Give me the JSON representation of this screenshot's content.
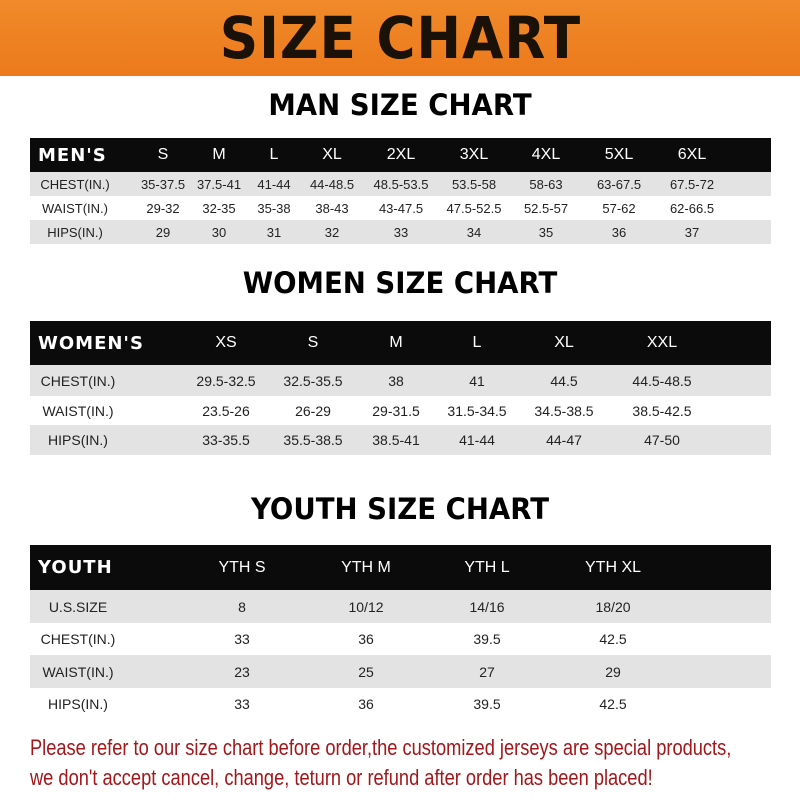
{
  "banner_title": "SIZE CHART",
  "colors": {
    "banner": "#ec7a1c",
    "header_row": "#0b0b0b",
    "stripe": "#e3e3e3",
    "note": "#a3171b"
  },
  "men": {
    "title": "MAN SIZE CHART",
    "headers": [
      "MEN'S",
      "S",
      "M",
      "L",
      "XL",
      "2XL",
      "3XL",
      "4XL",
      "5XL",
      "6XL"
    ],
    "rows": [
      [
        "CHEST(IN.)",
        "35-37.5",
        "37.5-41",
        "41-44",
        "44-48.5",
        "48.5-53.5",
        "53.5-58",
        "58-63",
        "63-67.5",
        "67.5-72"
      ],
      [
        "WAIST(IN.)",
        "29-32",
        "32-35",
        "35-38",
        "38-43",
        "43-47.5",
        "47.5-52.5",
        "52.5-57",
        "57-62",
        "62-66.5"
      ],
      [
        "HIPS(IN.)",
        "29",
        "30",
        "31",
        "32",
        "33",
        "34",
        "35",
        "36",
        "37"
      ]
    ]
  },
  "women": {
    "title": "WOMEN SIZE CHART",
    "headers": [
      "WOMEN'S",
      "XS",
      "S",
      "M",
      "L",
      "XL",
      "XXL"
    ],
    "rows": [
      [
        "CHEST(IN.)",
        "29.5-32.5",
        "32.5-35.5",
        "38",
        "41",
        "44.5",
        "44.5-48.5"
      ],
      [
        "WAIST(IN.)",
        "23.5-26",
        "26-29",
        "29-31.5",
        "31.5-34.5",
        "34.5-38.5",
        "38.5-42.5"
      ],
      [
        "HIPS(IN.)",
        "33-35.5",
        "35.5-38.5",
        "38.5-41",
        "41-44",
        "44-47",
        "47-50"
      ]
    ]
  },
  "youth": {
    "title": "YOUTH SIZE CHART",
    "headers": [
      "YOUTH",
      "YTH S",
      "YTH M",
      "YTH L",
      "YTH XL"
    ],
    "rows": [
      [
        "U.S.SIZE",
        "8",
        "10/12",
        "14/16",
        "18/20"
      ],
      [
        "CHEST(IN.)",
        "33",
        "36",
        "39.5",
        "42.5"
      ],
      [
        "WAIST(IN.)",
        "23",
        "25",
        "27",
        "29"
      ],
      [
        "HIPS(IN.)",
        "33",
        "36",
        "39.5",
        "42.5"
      ]
    ]
  },
  "note": {
    "line1": "Please refer to our size chart before order,the customized jerseys are special products,",
    "line2": "we don't accept cancel, change, teturn or refund after order has been placed!"
  }
}
